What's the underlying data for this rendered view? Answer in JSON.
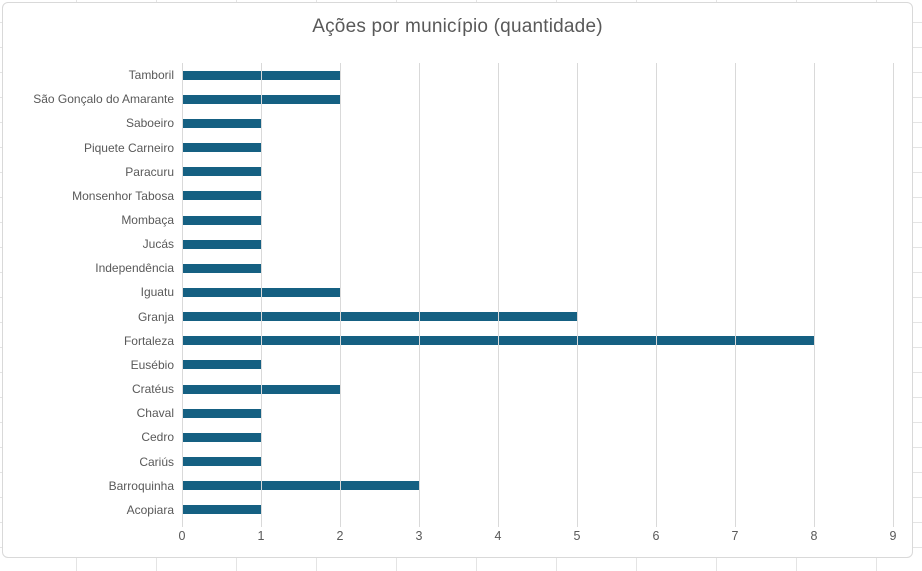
{
  "chart_data": {
    "type": "bar",
    "orientation": "horizontal",
    "title": "Ações por município (quantidade)",
    "categories": [
      "Tamboril",
      "São Gonçalo do Amarante",
      "Saboeiro",
      "Piquete Carneiro",
      "Paracuru",
      "Monsenhor Tabosa",
      "Mombaça",
      "Jucás",
      "Independência",
      "Iguatu",
      "Granja",
      "Fortaleza",
      "Eusébio",
      "Cratéus",
      "Chaval",
      "Cedro",
      "Cariús",
      "Barroquinha",
      "Acopiara"
    ],
    "values": [
      2,
      2,
      1,
      1,
      1,
      1,
      1,
      1,
      1,
      2,
      5,
      8,
      1,
      2,
      1,
      1,
      1,
      3,
      1
    ],
    "xlabel": "",
    "ylabel": "",
    "xlim": [
      0,
      9
    ],
    "x_ticks": [
      0,
      1,
      2,
      3,
      4,
      5,
      6,
      7,
      8,
      9
    ],
    "grid": "vertical-gridlines-on",
    "legend": "none",
    "colors": {
      "bar": "#156082",
      "gridline": "#D9D9D9",
      "text": "#595959",
      "chart_border": "#D9D9D9",
      "background": "#FFFFFF"
    }
  }
}
